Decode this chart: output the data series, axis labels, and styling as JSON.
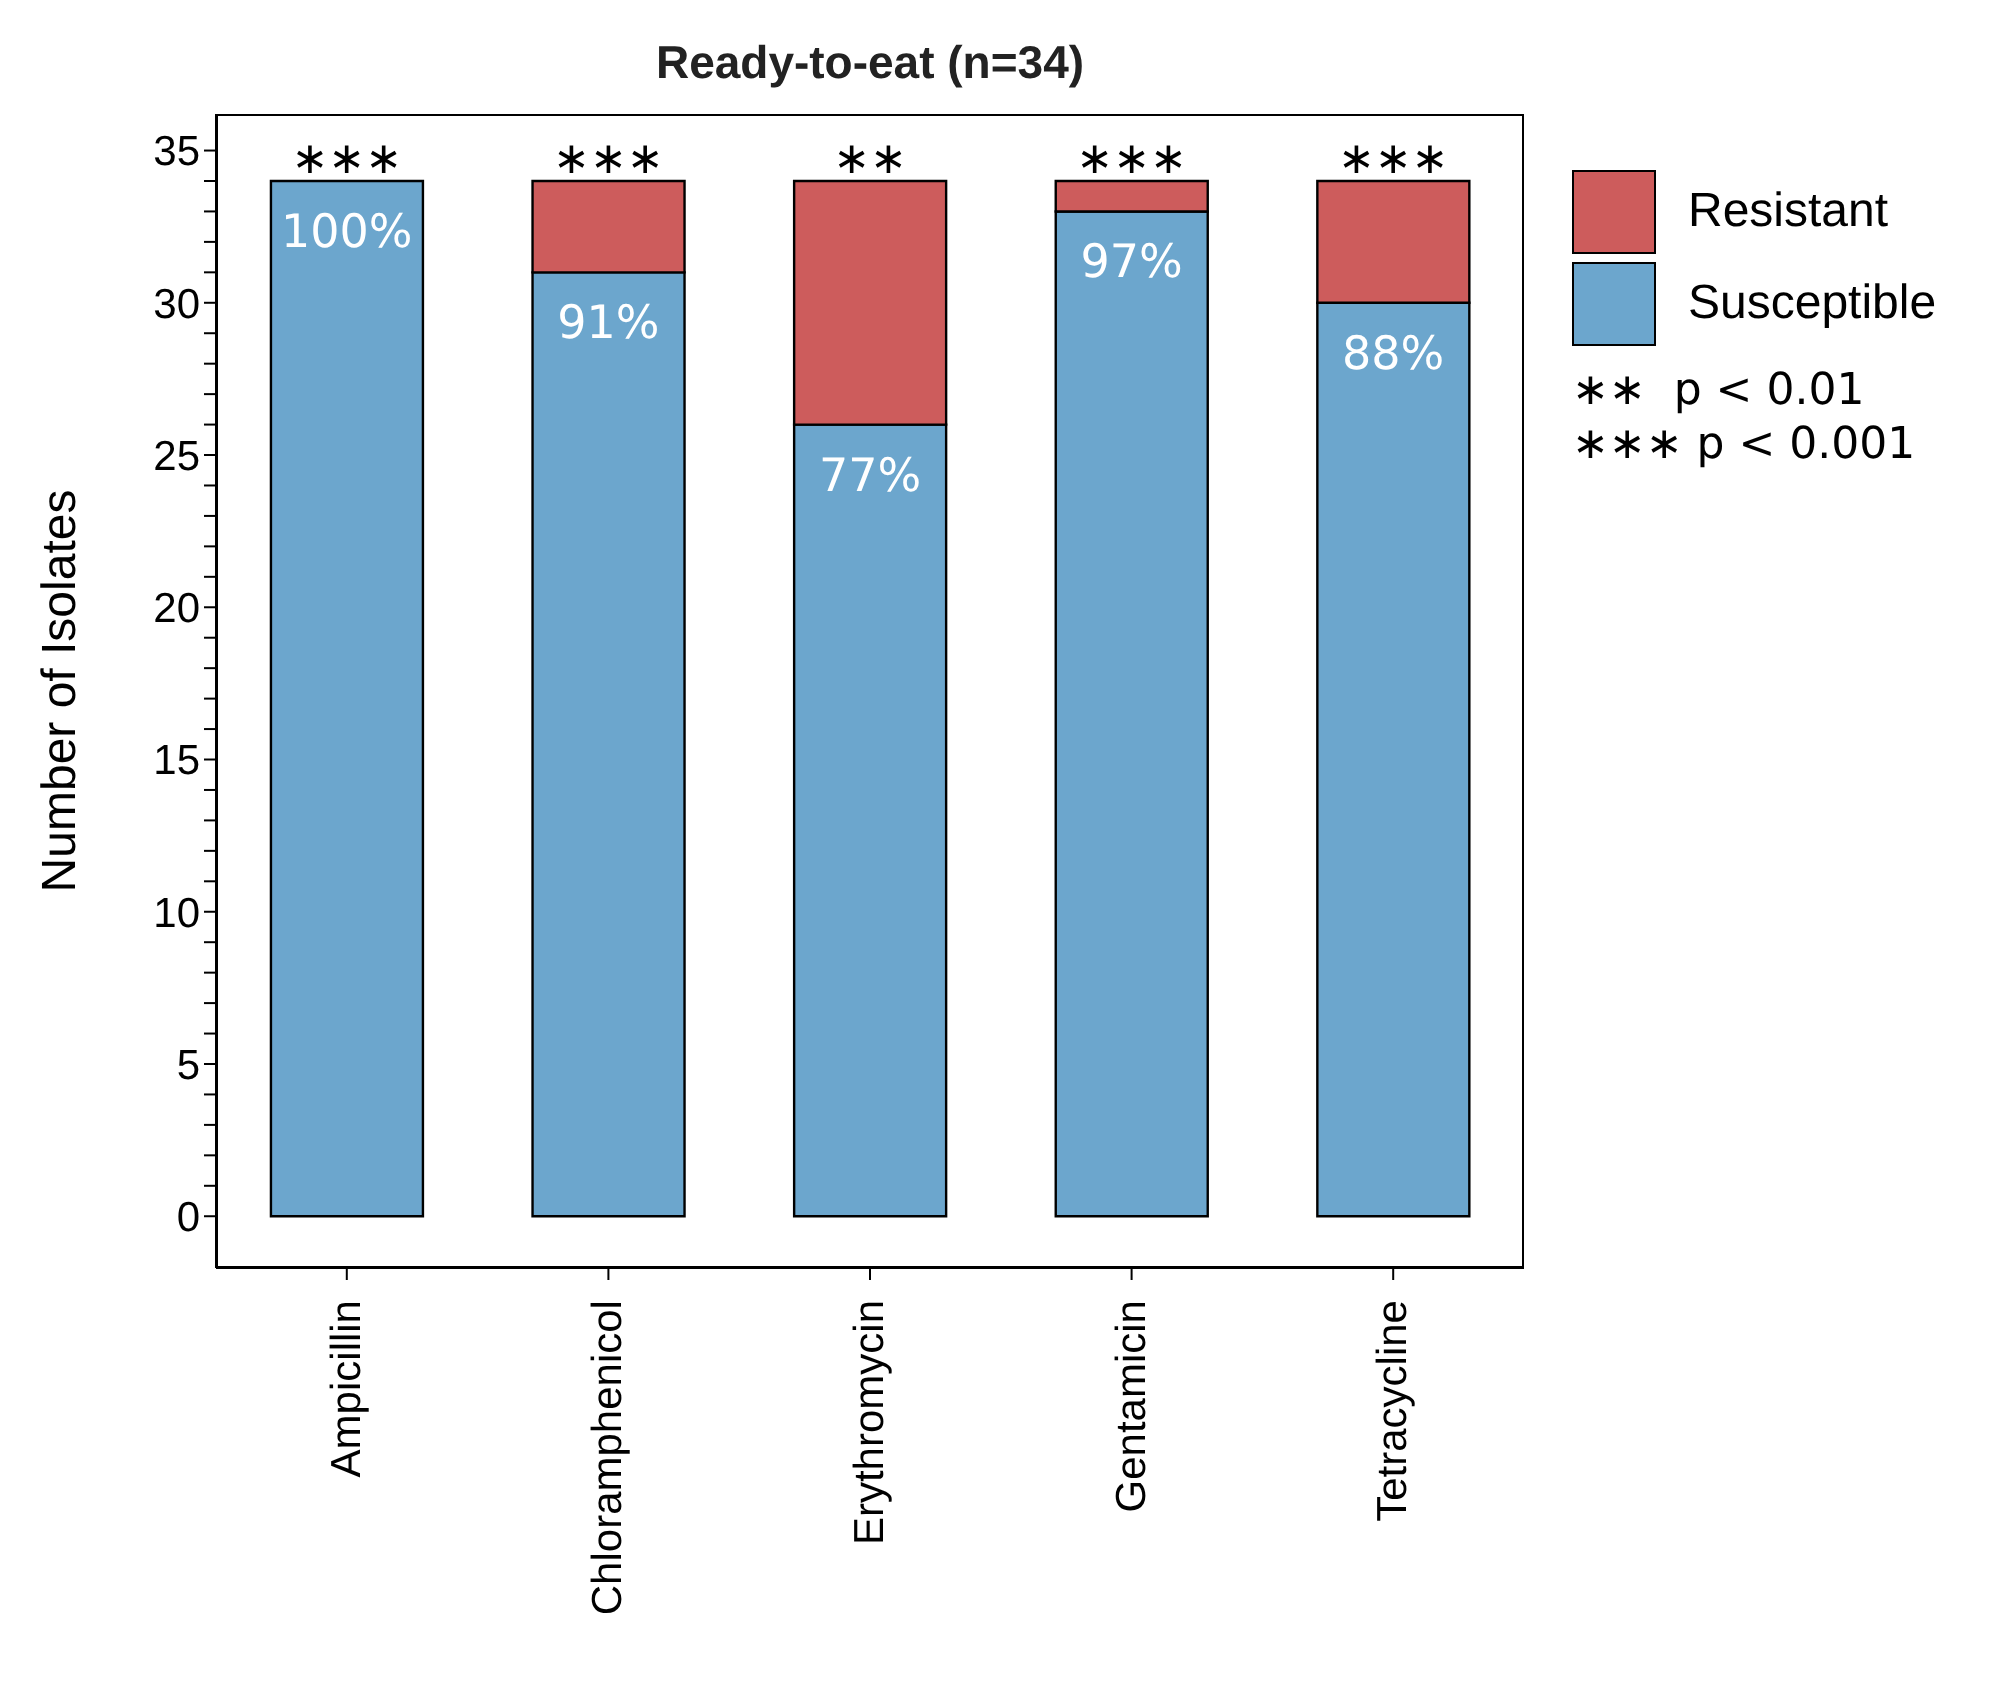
{
  "chart_data": {
    "type": "bar",
    "title": "Ready-to-eat (n=34)",
    "ylabel": "Number of Isolates",
    "stacked": true,
    "categories": [
      "Ampicillin",
      "Chloramphenicol",
      "Erythromycin",
      "Gentamicin",
      "Tetracycline"
    ],
    "series": [
      {
        "name": "Susceptible",
        "color": "#6ca6cd",
        "values": [
          34,
          31,
          26,
          33,
          30
        ]
      },
      {
        "name": "Resistant",
        "color": "#cd5c5c",
        "values": [
          0,
          3,
          8,
          1,
          4
        ]
      }
    ],
    "ylim": [
      -1.7,
      36.2
    ],
    "yticks": [
      0,
      {
        "value": 1,
        "label": null
      },
      {
        "value": 2,
        "label": null
      },
      {
        "value": 3,
        "label": null
      },
      {
        "value": 4,
        "label": null
      },
      5,
      {
        "value": 6,
        "label": null
      },
      {
        "value": 7,
        "label": null
      },
      {
        "value": 8,
        "label": null
      },
      {
        "value": 9,
        "label": null
      },
      10,
      {
        "value": 11,
        "label": null
      },
      {
        "value": 12,
        "label": null
      },
      {
        "value": 13,
        "label": null
      },
      {
        "value": 14,
        "label": null
      },
      15,
      {
        "value": 16,
        "label": null
      },
      {
        "value": 17,
        "label": null
      },
      {
        "value": 18,
        "label": null
      },
      {
        "value": 19,
        "label": null
      },
      20,
      {
        "value": 21,
        "label": null
      },
      {
        "value": 22,
        "label": null
      },
      {
        "value": 23,
        "label": null
      },
      {
        "value": 24,
        "label": null
      },
      25,
      {
        "value": 26,
        "label": null
      },
      {
        "value": 27,
        "label": null
      },
      {
        "value": 28,
        "label": null
      },
      {
        "value": 29,
        "label": null
      },
      30,
      {
        "value": 31,
        "label": null
      },
      {
        "value": 32,
        "label": null
      },
      {
        "value": 33,
        "label": null
      },
      {
        "value": 34,
        "label": null
      },
      35
    ],
    "grid": false,
    "legend": "top right",
    "annotations": [
      {
        "text": "∗∗∗",
        "x": "Ampicillin",
        "y": 34
      },
      {
        "text": "∗∗∗",
        "x": "Chloramphenicol",
        "y": 34
      },
      {
        "text": "∗∗",
        "x": "Erythromycin",
        "y": 34
      },
      {
        "text": "∗∗∗",
        "x": "Gentamicin",
        "y": 34
      },
      {
        "text": "∗∗∗",
        "x": "Tetracycline",
        "y": 34
      },
      {
        "text": "100%",
        "x": "Ampicillin",
        "y": 34
      },
      {
        "text": "91%",
        "x": "Chloramphenicol",
        "y": 31
      },
      {
        "text": "77%",
        "x": "Erythromycin",
        "y": 26
      },
      {
        "text": "97%",
        "x": "Gentamicin",
        "y": 33
      },
      {
        "text": "88%",
        "x": "Tetracycline",
        "y": 30
      },
      "∗∗  p < 0.01",
      "∗∗∗ p < 0.001"
    ]
  }
}
